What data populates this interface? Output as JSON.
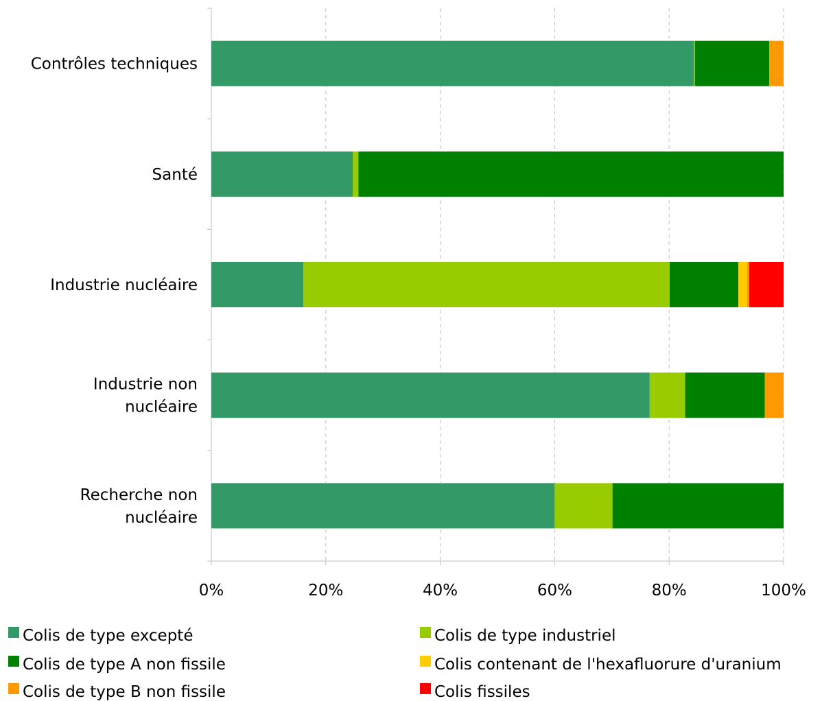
{
  "chart_data": {
    "type": "bar",
    "orientation": "horizontal",
    "stacked": "percent",
    "categories": [
      "Contrôles techniques",
      "Santé",
      "Industrie nucléaire",
      "Industrie non nucléaire",
      "Recherche non nucléaire"
    ],
    "series": [
      {
        "name": "Colis de type excepté",
        "color": "#339966",
        "values": [
          84.3,
          24.7,
          16.1,
          76.6,
          60.0
        ]
      },
      {
        "name": "Colis de type industriel",
        "color": "#99CC00",
        "values": [
          0.2,
          1.0,
          64.0,
          6.2,
          10.1
        ]
      },
      {
        "name": "Colis de type A non fissile",
        "color": "#008000",
        "values": [
          13.0,
          74.3,
          12.0,
          13.9,
          29.9
        ]
      },
      {
        "name": "Colis contenant de l'hexafluorure d'uranium",
        "color": "#FFCC00",
        "values": [
          0.0,
          0.0,
          1.5,
          0.0,
          0.0
        ]
      },
      {
        "name": "Colis de type B non fissile",
        "color": "#FF9900",
        "values": [
          2.5,
          0.0,
          0.4,
          3.3,
          0.0
        ]
      },
      {
        "name": "Colis fissiles",
        "color": "#FF0000",
        "values": [
          0.0,
          0.0,
          6.0,
          0.0,
          0.0
        ]
      }
    ],
    "xlim": [
      0,
      100
    ],
    "x_ticks": [
      "0%",
      "20%",
      "40%",
      "60%",
      "80%",
      "100%"
    ],
    "grid": "vertical-dashed",
    "legend_position": "bottom",
    "title": "",
    "xlabel": "",
    "ylabel": ""
  }
}
